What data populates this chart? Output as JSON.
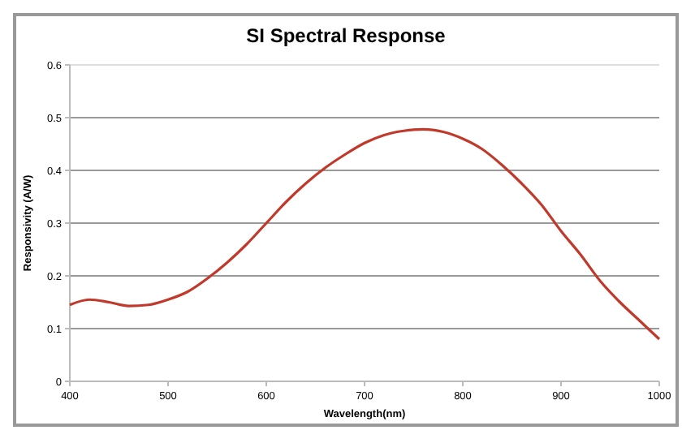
{
  "chart_data": {
    "type": "line",
    "title": "SI Spectral Response",
    "xlabel": "Wavelength(nm)",
    "ylabel": "Responsivity (A/W)",
    "x": [
      400,
      420,
      440,
      460,
      480,
      500,
      520,
      540,
      560,
      580,
      600,
      620,
      640,
      660,
      680,
      700,
      720,
      740,
      760,
      780,
      800,
      820,
      840,
      860,
      880,
      900,
      920,
      940,
      960,
      980,
      1000
    ],
    "series": [
      {
        "color": "#c0392b",
        "values": [
          0.145,
          0.155,
          0.15,
          0.143,
          0.145,
          0.155,
          0.17,
          0.195,
          0.225,
          0.26,
          0.3,
          0.34,
          0.375,
          0.405,
          0.43,
          0.452,
          0.467,
          0.475,
          0.478,
          0.473,
          0.46,
          0.44,
          0.41,
          0.375,
          0.335,
          0.285,
          0.24,
          0.19,
          0.15,
          0.115,
          0.08
        ]
      }
    ],
    "xlim": [
      400,
      1000
    ],
    "ylim": [
      0,
      0.6
    ],
    "xticks": [
      400,
      500,
      600,
      700,
      800,
      900,
      1000
    ],
    "yticks": [
      0,
      0.1,
      0.2,
      0.3,
      0.4,
      0.5,
      0.6
    ],
    "grid": "y",
    "marker": "none",
    "line_style": "solid"
  }
}
